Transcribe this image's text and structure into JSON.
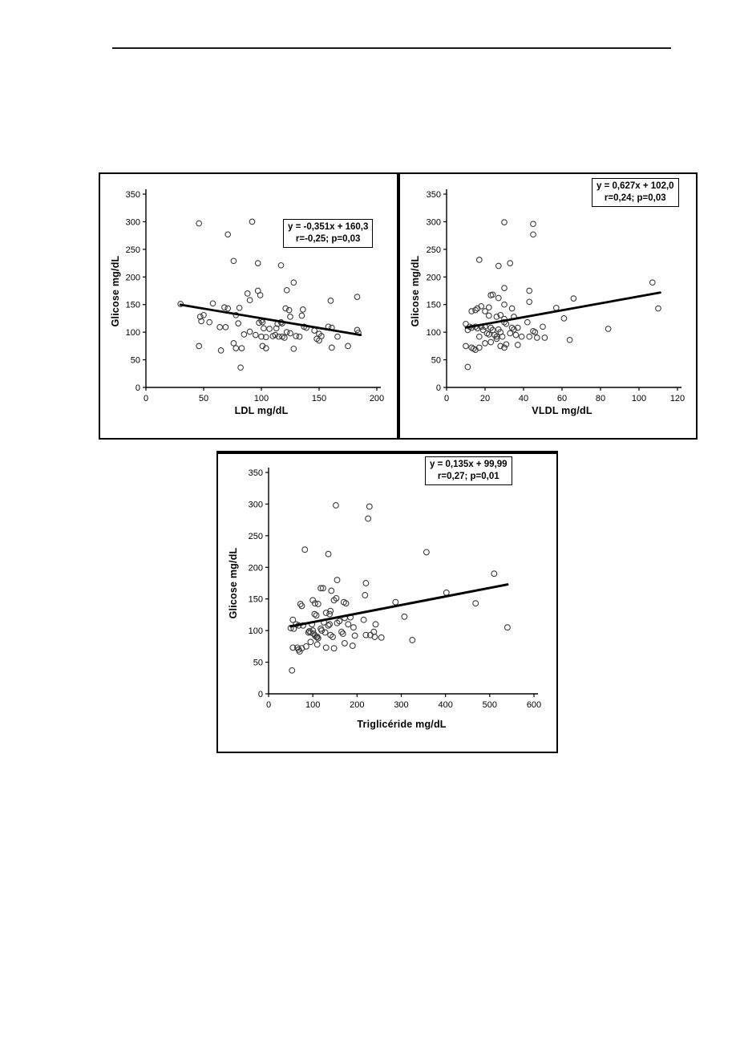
{
  "page": {
    "background": "#ffffff",
    "rule_color": "#1a1a1a"
  },
  "chart_data": [
    {
      "type": "scatter",
      "title": "",
      "xlabel": "LDL mg/dL",
      "ylabel": "Glicose mg/dL",
      "xlim": [
        0,
        200
      ],
      "ylim": [
        0,
        350
      ],
      "xticks": [
        0,
        50,
        100,
        150,
        200
      ],
      "yticks": [
        0,
        50,
        100,
        150,
        200,
        250,
        300,
        350
      ],
      "grid": false,
      "legend": "none",
      "marker": "open-circle",
      "equation": "y = -0,351x + 160,3",
      "stats": "r=-0,25; p=0,03",
      "trendline": {
        "x1": 30,
        "y1": 149.8,
        "x2": 186,
        "y2": 95.0
      },
      "points": [
        [
          46,
          297
        ],
        [
          92,
          300
        ],
        [
          71,
          277
        ],
        [
          76,
          229
        ],
        [
          97,
          225
        ],
        [
          117,
          221
        ],
        [
          128,
          190
        ],
        [
          122,
          176
        ],
        [
          97,
          175
        ],
        [
          88,
          170
        ],
        [
          99,
          167
        ],
        [
          90,
          158
        ],
        [
          160,
          157
        ],
        [
          183,
          164
        ],
        [
          30,
          151
        ],
        [
          58,
          152
        ],
        [
          68,
          145
        ],
        [
          71,
          143
        ],
        [
          81,
          144
        ],
        [
          121,
          143
        ],
        [
          124,
          140
        ],
        [
          136,
          141
        ],
        [
          135,
          130
        ],
        [
          125,
          128
        ],
        [
          47,
          128
        ],
        [
          50,
          131
        ],
        [
          55,
          118
        ],
        [
          48,
          120
        ],
        [
          78,
          131
        ],
        [
          100,
          121
        ],
        [
          98,
          117
        ],
        [
          102,
          107
        ],
        [
          107,
          106
        ],
        [
          113,
          107
        ],
        [
          64,
          109
        ],
        [
          69,
          109
        ],
        [
          80,
          116
        ],
        [
          101,
          118
        ],
        [
          114,
          115
        ],
        [
          117,
          118
        ],
        [
          118,
          116
        ],
        [
          137,
          110
        ],
        [
          139,
          108
        ],
        [
          146,
          103
        ],
        [
          150,
          97
        ],
        [
          152,
          93
        ],
        [
          148,
          88
        ],
        [
          150,
          85
        ],
        [
          158,
          110
        ],
        [
          161,
          108
        ],
        [
          166,
          92
        ],
        [
          183,
          104
        ],
        [
          184,
          99
        ],
        [
          85,
          96
        ],
        [
          90,
          101
        ],
        [
          95,
          95
        ],
        [
          100,
          92
        ],
        [
          104,
          91
        ],
        [
          110,
          93
        ],
        [
          112,
          95
        ],
        [
          115,
          92
        ],
        [
          118,
          92
        ],
        [
          120,
          90
        ],
        [
          122,
          100
        ],
        [
          125,
          98
        ],
        [
          130,
          93
        ],
        [
          133,
          92
        ],
        [
          46,
          75
        ],
        [
          65,
          67
        ],
        [
          76,
          80
        ],
        [
          78,
          71
        ],
        [
          83,
          71
        ],
        [
          101,
          75
        ],
        [
          104,
          71
        ],
        [
          128,
          70
        ],
        [
          175,
          75
        ],
        [
          161,
          72
        ],
        [
          82,
          36
        ]
      ]
    },
    {
      "type": "scatter",
      "title": "",
      "xlabel": "VLDL mg/dL",
      "ylabel": "Glicose mg/dL",
      "xlim": [
        0,
        120
      ],
      "ylim": [
        0,
        350
      ],
      "xticks": [
        0,
        20,
        40,
        60,
        80,
        100,
        120
      ],
      "yticks": [
        0,
        50,
        100,
        150,
        200,
        250,
        300,
        350
      ],
      "grid": false,
      "legend": "none",
      "marker": "open-circle",
      "equation": "y = 0,627x + 102,0",
      "stats": "r=0,24; p=0,03",
      "trendline": {
        "x1": 10,
        "y1": 108.3,
        "x2": 111,
        "y2": 171.6
      },
      "points": [
        [
          30,
          299
        ],
        [
          45,
          296
        ],
        [
          45,
          277
        ],
        [
          17,
          231
        ],
        [
          27,
          220
        ],
        [
          33,
          225
        ],
        [
          107,
          190
        ],
        [
          30,
          180
        ],
        [
          43,
          175
        ],
        [
          23,
          167
        ],
        [
          24,
          168
        ],
        [
          27,
          162
        ],
        [
          66,
          161
        ],
        [
          43,
          155
        ],
        [
          30,
          150
        ],
        [
          18,
          147
        ],
        [
          16,
          143
        ],
        [
          22,
          145
        ],
        [
          34,
          143
        ],
        [
          57,
          144
        ],
        [
          110,
          143
        ],
        [
          13,
          138
        ],
        [
          15,
          140
        ],
        [
          20,
          138
        ],
        [
          22,
          130
        ],
        [
          26,
          128
        ],
        [
          28,
          131
        ],
        [
          30,
          124
        ],
        [
          35,
          128
        ],
        [
          10,
          115
        ],
        [
          11,
          104
        ],
        [
          12,
          110
        ],
        [
          13,
          108
        ],
        [
          15,
          110
        ],
        [
          16,
          107
        ],
        [
          17,
          92
        ],
        [
          18,
          110
        ],
        [
          19,
          104
        ],
        [
          20,
          110
        ],
        [
          21,
          98
        ],
        [
          22,
          96
        ],
        [
          23,
          108
        ],
        [
          24,
          104
        ],
        [
          25,
          95
        ],
        [
          26,
          92
        ],
        [
          27,
          105
        ],
        [
          28,
          100
        ],
        [
          29,
          92
        ],
        [
          30,
          118
        ],
        [
          31,
          115
        ],
        [
          33,
          98
        ],
        [
          34,
          108
        ],
        [
          35,
          105
        ],
        [
          36,
          95
        ],
        [
          37,
          108
        ],
        [
          39,
          92
        ],
        [
          42,
          118
        ],
        [
          43,
          92
        ],
        [
          45,
          102
        ],
        [
          46,
          100
        ],
        [
          47,
          90
        ],
        [
          50,
          110
        ],
        [
          51,
          90
        ],
        [
          61,
          125
        ],
        [
          64,
          86
        ],
        [
          84,
          106
        ],
        [
          10,
          75
        ],
        [
          13,
          72
        ],
        [
          14,
          70
        ],
        [
          15,
          68
        ],
        [
          17,
          72
        ],
        [
          20,
          80
        ],
        [
          23,
          82
        ],
        [
          26,
          88
        ],
        [
          28,
          75
        ],
        [
          30,
          72
        ],
        [
          31,
          78
        ],
        [
          37,
          77
        ],
        [
          11,
          37
        ]
      ]
    },
    {
      "type": "scatter",
      "title": "",
      "xlabel": "Triglicéride mg/dL",
      "ylabel": "Glicose mg/dL",
      "xlim": [
        0,
        600
      ],
      "ylim": [
        0,
        350
      ],
      "xticks": [
        0,
        100,
        200,
        300,
        400,
        500,
        600
      ],
      "yticks": [
        0,
        50,
        100,
        150,
        200,
        250,
        300,
        350
      ],
      "grid": false,
      "legend": "none",
      "marker": "open-circle",
      "equation": "y = 0,135x + 99,99",
      "stats": "r=0,27; p=0,01",
      "trendline": {
        "x1": 50,
        "y1": 106.7,
        "x2": 540,
        "y2": 172.9
      },
      "points": [
        [
          152,
          298
        ],
        [
          228,
          296
        ],
        [
          225,
          277
        ],
        [
          82,
          228
        ],
        [
          135,
          221
        ],
        [
          357,
          224
        ],
        [
          510,
          190
        ],
        [
          155,
          180
        ],
        [
          220,
          175
        ],
        [
          118,
          167
        ],
        [
          123,
          167
        ],
        [
          142,
          163
        ],
        [
          402,
          160
        ],
        [
          218,
          156
        ],
        [
          153,
          151
        ],
        [
          148,
          148
        ],
        [
          100,
          148
        ],
        [
          105,
          143
        ],
        [
          112,
          142
        ],
        [
          72,
          142
        ],
        [
          75,
          139
        ],
        [
          170,
          145
        ],
        [
          175,
          143
        ],
        [
          287,
          145
        ],
        [
          468,
          143
        ],
        [
          104,
          126
        ],
        [
          108,
          124
        ],
        [
          130,
          128
        ],
        [
          138,
          126
        ],
        [
          140,
          131
        ],
        [
          55,
          117
        ],
        [
          172,
          120
        ],
        [
          185,
          121
        ],
        [
          307,
          122
        ],
        [
          50,
          104
        ],
        [
          57,
          103
        ],
        [
          62,
          110
        ],
        [
          68,
          108
        ],
        [
          78,
          108
        ],
        [
          90,
          97
        ],
        [
          92,
          99
        ],
        [
          95,
          97
        ],
        [
          98,
          110
        ],
        [
          100,
          100
        ],
        [
          102,
          95
        ],
        [
          105,
          92
        ],
        [
          108,
          90
        ],
        [
          110,
          90
        ],
        [
          112,
          88
        ],
        [
          118,
          103
        ],
        [
          120,
          100
        ],
        [
          125,
          113
        ],
        [
          128,
          97
        ],
        [
          135,
          108
        ],
        [
          138,
          110
        ],
        [
          140,
          93
        ],
        [
          145,
          90
        ],
        [
          148,
          72
        ],
        [
          155,
          112
        ],
        [
          160,
          115
        ],
        [
          165,
          98
        ],
        [
          168,
          95
        ],
        [
          172,
          80
        ],
        [
          180,
          110
        ],
        [
          190,
          76
        ],
        [
          192,
          105
        ],
        [
          195,
          92
        ],
        [
          215,
          117
        ],
        [
          220,
          93
        ],
        [
          230,
          93
        ],
        [
          238,
          98
        ],
        [
          240,
          90
        ],
        [
          242,
          110
        ],
        [
          255,
          89
        ],
        [
          325,
          85
        ],
        [
          540,
          105
        ],
        [
          55,
          73
        ],
        [
          65,
          73
        ],
        [
          68,
          70
        ],
        [
          70,
          67
        ],
        [
          75,
          72
        ],
        [
          85,
          75
        ],
        [
          95,
          82
        ],
        [
          110,
          78
        ],
        [
          130,
          73
        ],
        [
          53,
          37
        ]
      ]
    }
  ]
}
